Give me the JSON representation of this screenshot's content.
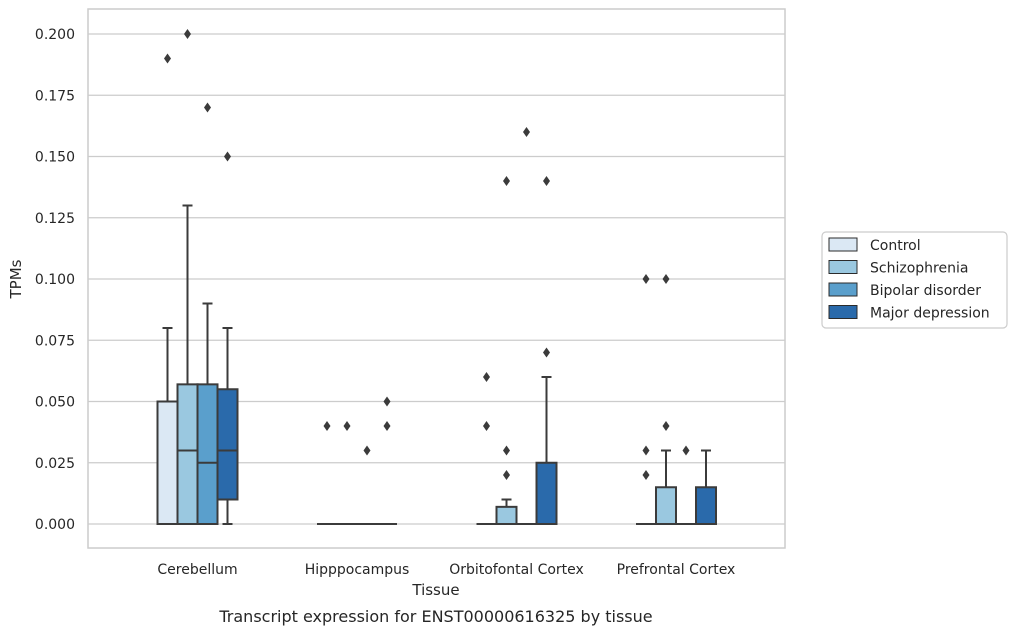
{
  "chart_data": {
    "type": "box",
    "title": "",
    "caption": "Transcript expression for ENST00000616325 by tissue",
    "xlabel": "Tissue",
    "ylabel": "TPMs",
    "ylim": [
      -0.01,
      0.21
    ],
    "yticks": [
      "0.000",
      "0.025",
      "0.050",
      "0.075",
      "0.100",
      "0.125",
      "0.150",
      "0.175",
      "0.200"
    ],
    "grid": "horizontal",
    "legend_placement": "right",
    "categories": [
      "Cerebellum",
      "Hipppocampus",
      "Orbitofontal Cortex",
      "Prefrontal Cortex"
    ],
    "series": [
      {
        "name": "Control",
        "color": "#dbe8f4",
        "boxes": [
          {
            "category": "Cerebellum",
            "whislo": 0.0,
            "q1": 0.0,
            "med": 0.0,
            "q3": 0.05,
            "whishi": 0.08,
            "fliers": [
              0.19
            ]
          },
          {
            "category": "Hipppocampus",
            "whislo": 0.0,
            "q1": 0.0,
            "med": 0.0,
            "q3": 0.0,
            "whishi": 0.0,
            "fliers": [
              0.04
            ]
          },
          {
            "category": "Orbitofontal Cortex",
            "whislo": 0.0,
            "q1": 0.0,
            "med": 0.0,
            "q3": 0.0,
            "whishi": 0.0,
            "fliers": [
              0.06,
              0.04
            ]
          },
          {
            "category": "Prefrontal Cortex",
            "whislo": 0.0,
            "q1": 0.0,
            "med": 0.0,
            "q3": 0.0,
            "whishi": 0.0,
            "fliers": [
              0.1,
              0.03,
              0.02
            ]
          }
        ]
      },
      {
        "name": "Schizophrenia",
        "color": "#9ac8e0",
        "boxes": [
          {
            "category": "Cerebellum",
            "whislo": 0.0,
            "q1": 0.0,
            "med": 0.03,
            "q3": 0.057,
            "whishi": 0.13,
            "fliers": [
              0.2
            ]
          },
          {
            "category": "Hipppocampus",
            "whislo": 0.0,
            "q1": 0.0,
            "med": 0.0,
            "q3": 0.0,
            "whishi": 0.0,
            "fliers": [
              0.04
            ]
          },
          {
            "category": "Orbitofontal Cortex",
            "whislo": 0.0,
            "q1": 0.0,
            "med": 0.0,
            "q3": 0.007,
            "whishi": 0.01,
            "fliers": [
              0.14,
              0.03,
              0.02
            ]
          },
          {
            "category": "Prefrontal Cortex",
            "whislo": 0.0,
            "q1": 0.0,
            "med": 0.0,
            "q3": 0.015,
            "whishi": 0.03,
            "fliers": [
              0.1,
              0.04
            ]
          }
        ]
      },
      {
        "name": "Bipolar disorder",
        "color": "#5a9fcc",
        "boxes": [
          {
            "category": "Cerebellum",
            "whislo": 0.0,
            "q1": 0.0,
            "med": 0.025,
            "q3": 0.057,
            "whishi": 0.09,
            "fliers": [
              0.17
            ]
          },
          {
            "category": "Hipppocampus",
            "whislo": 0.0,
            "q1": 0.0,
            "med": 0.0,
            "q3": 0.0,
            "whishi": 0.0,
            "fliers": [
              0.03
            ]
          },
          {
            "category": "Orbitofontal Cortex",
            "whislo": 0.0,
            "q1": 0.0,
            "med": 0.0,
            "q3": 0.0,
            "whishi": 0.0,
            "fliers": [
              0.16
            ]
          },
          {
            "category": "Prefrontal Cortex",
            "whislo": 0.0,
            "q1": 0.0,
            "med": 0.0,
            "q3": 0.0,
            "whishi": 0.0,
            "fliers": [
              0.03
            ]
          }
        ]
      },
      {
        "name": "Major depression",
        "color": "#2a6aab",
        "boxes": [
          {
            "category": "Cerebellum",
            "whislo": 0.0,
            "q1": 0.01,
            "med": 0.03,
            "q3": 0.055,
            "whishi": 0.08,
            "fliers": [
              0.15
            ]
          },
          {
            "category": "Hipppocampus",
            "whislo": 0.0,
            "q1": 0.0,
            "med": 0.0,
            "q3": 0.0,
            "whishi": 0.0,
            "fliers": [
              0.05,
              0.04
            ]
          },
          {
            "category": "Orbitofontal Cortex",
            "whislo": 0.0,
            "q1": 0.0,
            "med": 0.0,
            "q3": 0.025,
            "whishi": 0.06,
            "fliers": [
              0.14,
              0.07
            ]
          },
          {
            "category": "Prefrontal Cortex",
            "whislo": 0.0,
            "q1": 0.0,
            "med": 0.0,
            "q3": 0.015,
            "whishi": 0.03,
            "fliers": []
          }
        ]
      }
    ]
  }
}
